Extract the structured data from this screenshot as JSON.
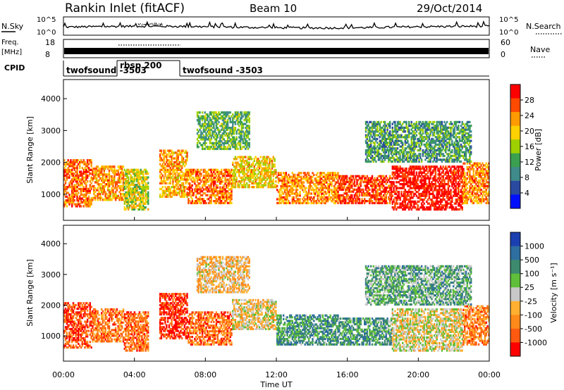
{
  "header": {
    "station": "Rankin Inlet (fitACF)",
    "beam": "Beam 10",
    "date": "29/Oct/2014"
  },
  "nsky_panel": {
    "left_label": "N.Sky",
    "left_ticks": [
      "10^5",
      "10^0"
    ],
    "right_ticks": [
      "10^5",
      "10^0"
    ],
    "right_label": "N.Search"
  },
  "freq_panel": {
    "left_label_line1": "Freq.",
    "left_label_line2": "[MHz]",
    "left_ticks": [
      "18",
      "8"
    ],
    "right_ticks": [
      "60",
      "0"
    ],
    "right_label": "Nave"
  },
  "cpid_panel": {
    "label": "CPID",
    "segments": [
      {
        "name": "twofsound -3503",
        "start_hour": 0,
        "end_hour": 2.5
      },
      {
        "name": "rbsp 200",
        "start_hour": 2.5,
        "end_hour": 5.4
      },
      {
        "name": "twofsound -3503",
        "start_hour": 5.4,
        "end_hour": 24
      }
    ]
  },
  "chart_data": [
    {
      "type": "heatmap",
      "name": "power",
      "ylabel": "Slant Range [km]",
      "xlabel": "Time UT",
      "xlim": [
        0,
        24
      ],
      "ylim": [
        180,
        4600
      ],
      "x_ticks": [
        "00:00",
        "04:00",
        "08:00",
        "12:00",
        "16:00",
        "20:00",
        "00:00"
      ],
      "x_tick_hours": [
        0,
        4,
        8,
        12,
        16,
        20,
        24
      ],
      "y_ticks": [
        1000,
        2000,
        3000,
        4000
      ],
      "colorbar": {
        "label": "Power [dB]",
        "ticks": [
          "28",
          "24",
          "20",
          "16",
          "12",
          "8",
          "4"
        ],
        "colors": [
          "#ff0000",
          "#ff4a00",
          "#ff9a00",
          "#ffd000",
          "#9ed000",
          "#3aa050",
          "#3f8a8a",
          "#2a4aa0",
          "#0010ff"
        ]
      },
      "echo_regions": [
        {
          "t0": 0.0,
          "t1": 1.6,
          "r0": 600,
          "r1": 2100,
          "level": 0.8
        },
        {
          "t0": 1.6,
          "t1": 3.4,
          "r0": 800,
          "r1": 1900,
          "level": 0.72
        },
        {
          "t0": 3.4,
          "t1": 4.8,
          "r0": 500,
          "r1": 1800,
          "level": 0.55
        },
        {
          "t0": 5.4,
          "t1": 7.0,
          "r0": 900,
          "r1": 2400,
          "level": 0.7
        },
        {
          "t0": 7.0,
          "t1": 9.5,
          "r0": 700,
          "r1": 1800,
          "level": 0.78
        },
        {
          "t0": 9.5,
          "t1": 12.0,
          "r0": 1200,
          "r1": 2200,
          "level": 0.62
        },
        {
          "t0": 12.0,
          "t1": 15.5,
          "r0": 700,
          "r1": 1700,
          "level": 0.74
        },
        {
          "t0": 15.5,
          "t1": 18.5,
          "r0": 700,
          "r1": 1600,
          "level": 0.86
        },
        {
          "t0": 18.5,
          "t1": 22.5,
          "r0": 500,
          "r1": 1900,
          "level": 0.95
        },
        {
          "t0": 22.5,
          "t1": 24.0,
          "r0": 700,
          "r1": 2000,
          "level": 0.75
        },
        {
          "t0": 7.5,
          "t1": 10.5,
          "r0": 2400,
          "r1": 3600,
          "level": 0.4
        },
        {
          "t0": 17.0,
          "t1": 23.0,
          "r0": 2000,
          "r1": 3300,
          "level": 0.35
        }
      ]
    },
    {
      "type": "heatmap",
      "name": "velocity",
      "ylabel": "Slant Range [km]",
      "xlabel": "Time UT",
      "xlim": [
        0,
        24
      ],
      "ylim": [
        180,
        4600
      ],
      "x_ticks": [
        "00:00",
        "04:00",
        "08:00",
        "12:00",
        "16:00",
        "20:00",
        "00:00"
      ],
      "x_tick_hours": [
        0,
        4,
        8,
        12,
        16,
        20,
        24
      ],
      "y_ticks": [
        1000,
        2000,
        3000,
        4000
      ],
      "colorbar": {
        "label": "Velocity [m s⁻¹]",
        "ticks": [
          "1000",
          "500",
          "100",
          "25",
          "-25",
          "-100",
          "-500",
          "-1000"
        ],
        "colors": [
          "#1b3fb0",
          "#2e6ea0",
          "#3d8a6e",
          "#5fbf3a",
          "#c8c8c8",
          "#ffb030",
          "#ff8a1a",
          "#ff5a10",
          "#ff0000"
        ]
      },
      "echo_regions": [
        {
          "t0": 0.0,
          "t1": 1.6,
          "r0": 600,
          "r1": 2100,
          "level": 0.15
        },
        {
          "t0": 1.6,
          "t1": 3.4,
          "r0": 800,
          "r1": 1900,
          "level": 0.25
        },
        {
          "t0": 3.4,
          "t1": 4.8,
          "r0": 500,
          "r1": 1800,
          "level": 0.22
        },
        {
          "t0": 5.4,
          "t1": 7.0,
          "r0": 900,
          "r1": 2400,
          "level": 0.08
        },
        {
          "t0": 7.0,
          "t1": 9.5,
          "r0": 700,
          "r1": 1800,
          "level": 0.22
        },
        {
          "t0": 9.5,
          "t1": 12.0,
          "r0": 1200,
          "r1": 2200,
          "level": 0.45
        },
        {
          "t0": 12.0,
          "t1": 15.5,
          "r0": 700,
          "r1": 1700,
          "level": 0.72
        },
        {
          "t0": 15.5,
          "t1": 18.5,
          "r0": 700,
          "r1": 1600,
          "level": 0.7
        },
        {
          "t0": 18.5,
          "t1": 22.5,
          "r0": 500,
          "r1": 1900,
          "level": 0.48
        },
        {
          "t0": 22.5,
          "t1": 24.0,
          "r0": 700,
          "r1": 2000,
          "level": 0.25
        },
        {
          "t0": 7.5,
          "t1": 10.5,
          "r0": 2400,
          "r1": 3600,
          "level": 0.4
        },
        {
          "t0": 17.0,
          "t1": 23.0,
          "r0": 2000,
          "r1": 3300,
          "level": 0.65
        }
      ]
    }
  ]
}
